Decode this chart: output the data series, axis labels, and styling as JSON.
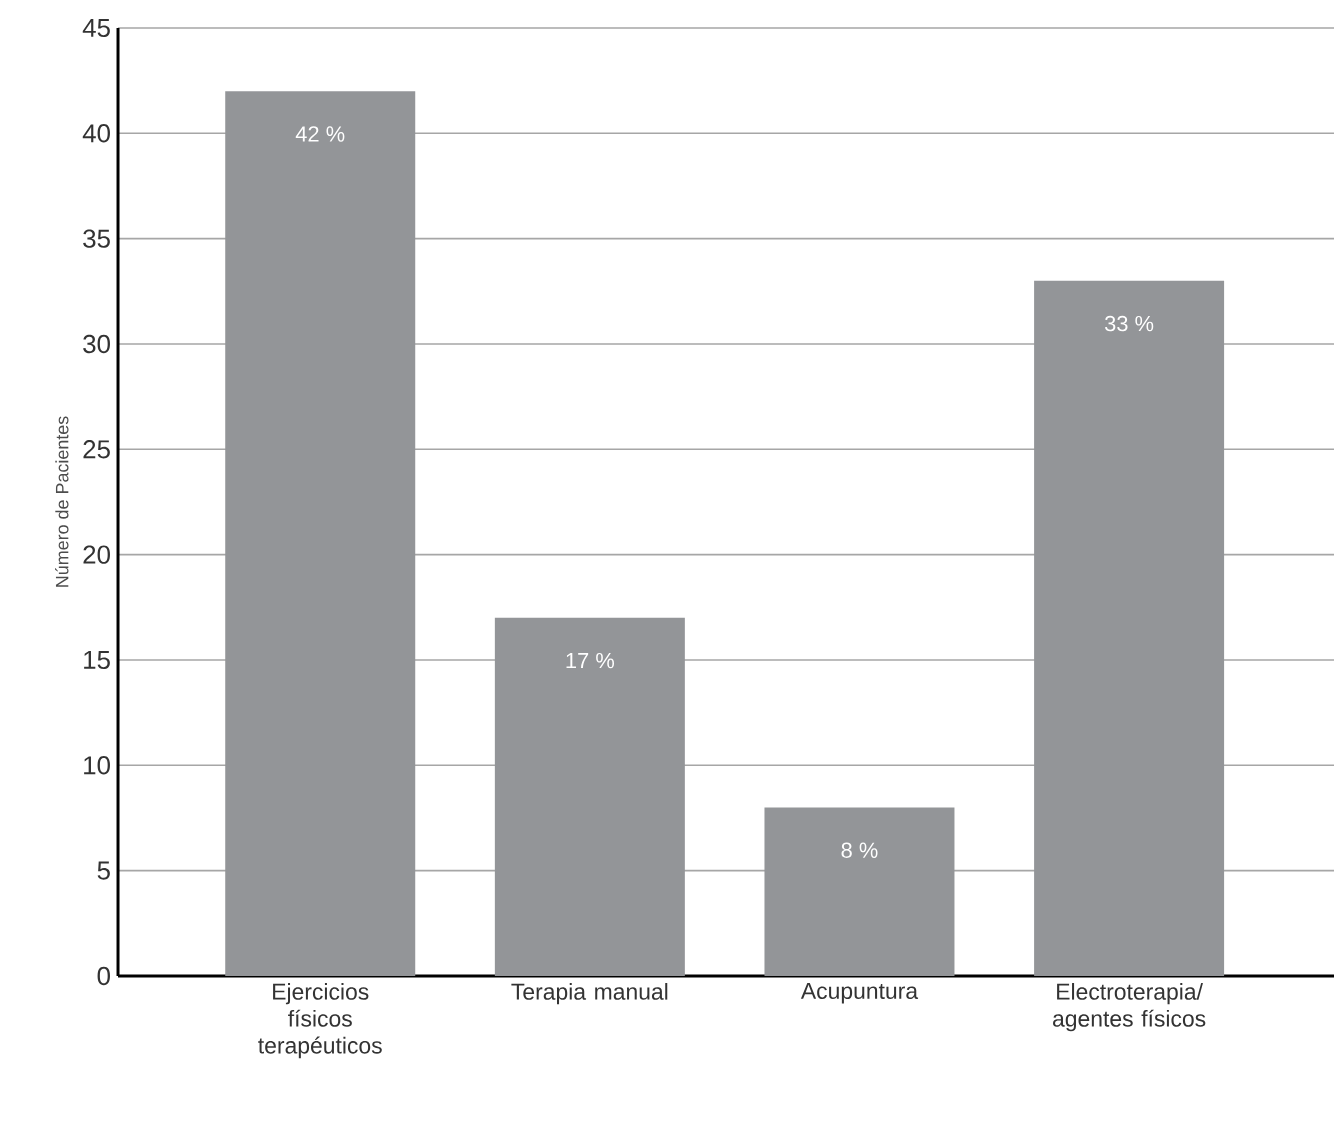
{
  "chart_data": {
    "type": "bar",
    "ylabel": "Número de Pacientes",
    "categories": [
      "Ejercicios físicos terapéuticos",
      "Terapia manual",
      "Acupuntura",
      "Electroterapia/ agentes físicos"
    ],
    "values": [
      42,
      17,
      8,
      33
    ],
    "value_labels": [
      "42 %",
      "17 %",
      "8 %",
      "33 %"
    ],
    "color": "#939598",
    "ylim": [
      0,
      45
    ],
    "yticks": [
      0,
      5,
      10,
      15,
      20,
      25,
      30,
      35,
      40,
      45
    ],
    "grid": "y"
  }
}
